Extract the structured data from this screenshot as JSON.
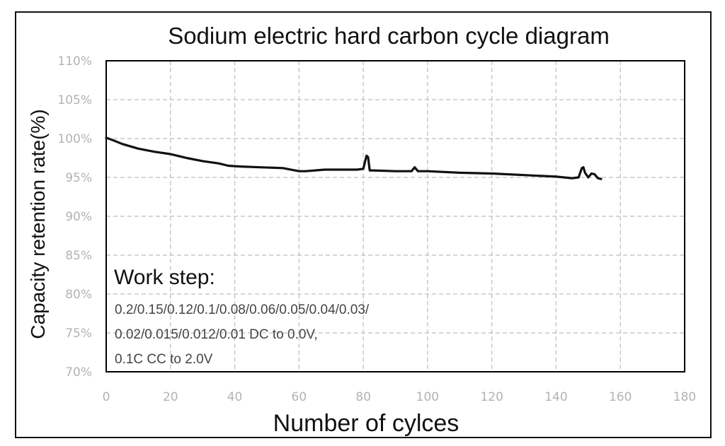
{
  "chart_data": {
    "type": "line",
    "title": "Sodium electric hard carbon cycle diagram",
    "xlabel": "Number of cylces",
    "ylabel": "Capacity retention rate(%)",
    "xlim": [
      0,
      180
    ],
    "ylim": [
      70,
      110
    ],
    "x_ticks": [
      "0",
      "20",
      "40",
      "60",
      "80",
      "100",
      "120",
      "140",
      "160",
      "180"
    ],
    "y_ticks": [
      "70%",
      "75%",
      "80%",
      "85%",
      "90%",
      "95%",
      "100%",
      "105%",
      "110%"
    ],
    "grid": true,
    "legend": "none",
    "series": [
      {
        "color": "#111111",
        "x": [
          0,
          2,
          5,
          10,
          15,
          20,
          25,
          30,
          35,
          38,
          42,
          48,
          55,
          60,
          62,
          65,
          68,
          72,
          78,
          80,
          81,
          81.5,
          82,
          83,
          90,
          95,
          96,
          97,
          100,
          110,
          120,
          130,
          140,
          145,
          147,
          148,
          148.5,
          149,
          150,
          151,
          152,
          153,
          154
        ],
        "y": [
          100.1,
          99.8,
          99.3,
          98.7,
          98.3,
          98.0,
          97.5,
          97.1,
          96.8,
          96.5,
          96.4,
          96.3,
          96.2,
          95.8,
          95.8,
          95.9,
          96.0,
          96.0,
          96.0,
          96.1,
          97.8,
          97.6,
          95.9,
          95.9,
          95.8,
          95.8,
          96.3,
          95.8,
          95.8,
          95.6,
          95.5,
          95.3,
          95.1,
          94.9,
          95.0,
          96.2,
          96.3,
          95.6,
          95.0,
          95.5,
          95.4,
          94.9,
          94.8
        ]
      }
    ],
    "annotation": {
      "heading": "Work step:",
      "lines": [
        "0.2/0.15/0.12/0.1/0.08/0.06/0.05/0.04/0.03/",
        "0.02/0.015/0.012/0.01 DC to 0.0V,",
        "0.1C CC to 2.0V"
      ]
    }
  }
}
